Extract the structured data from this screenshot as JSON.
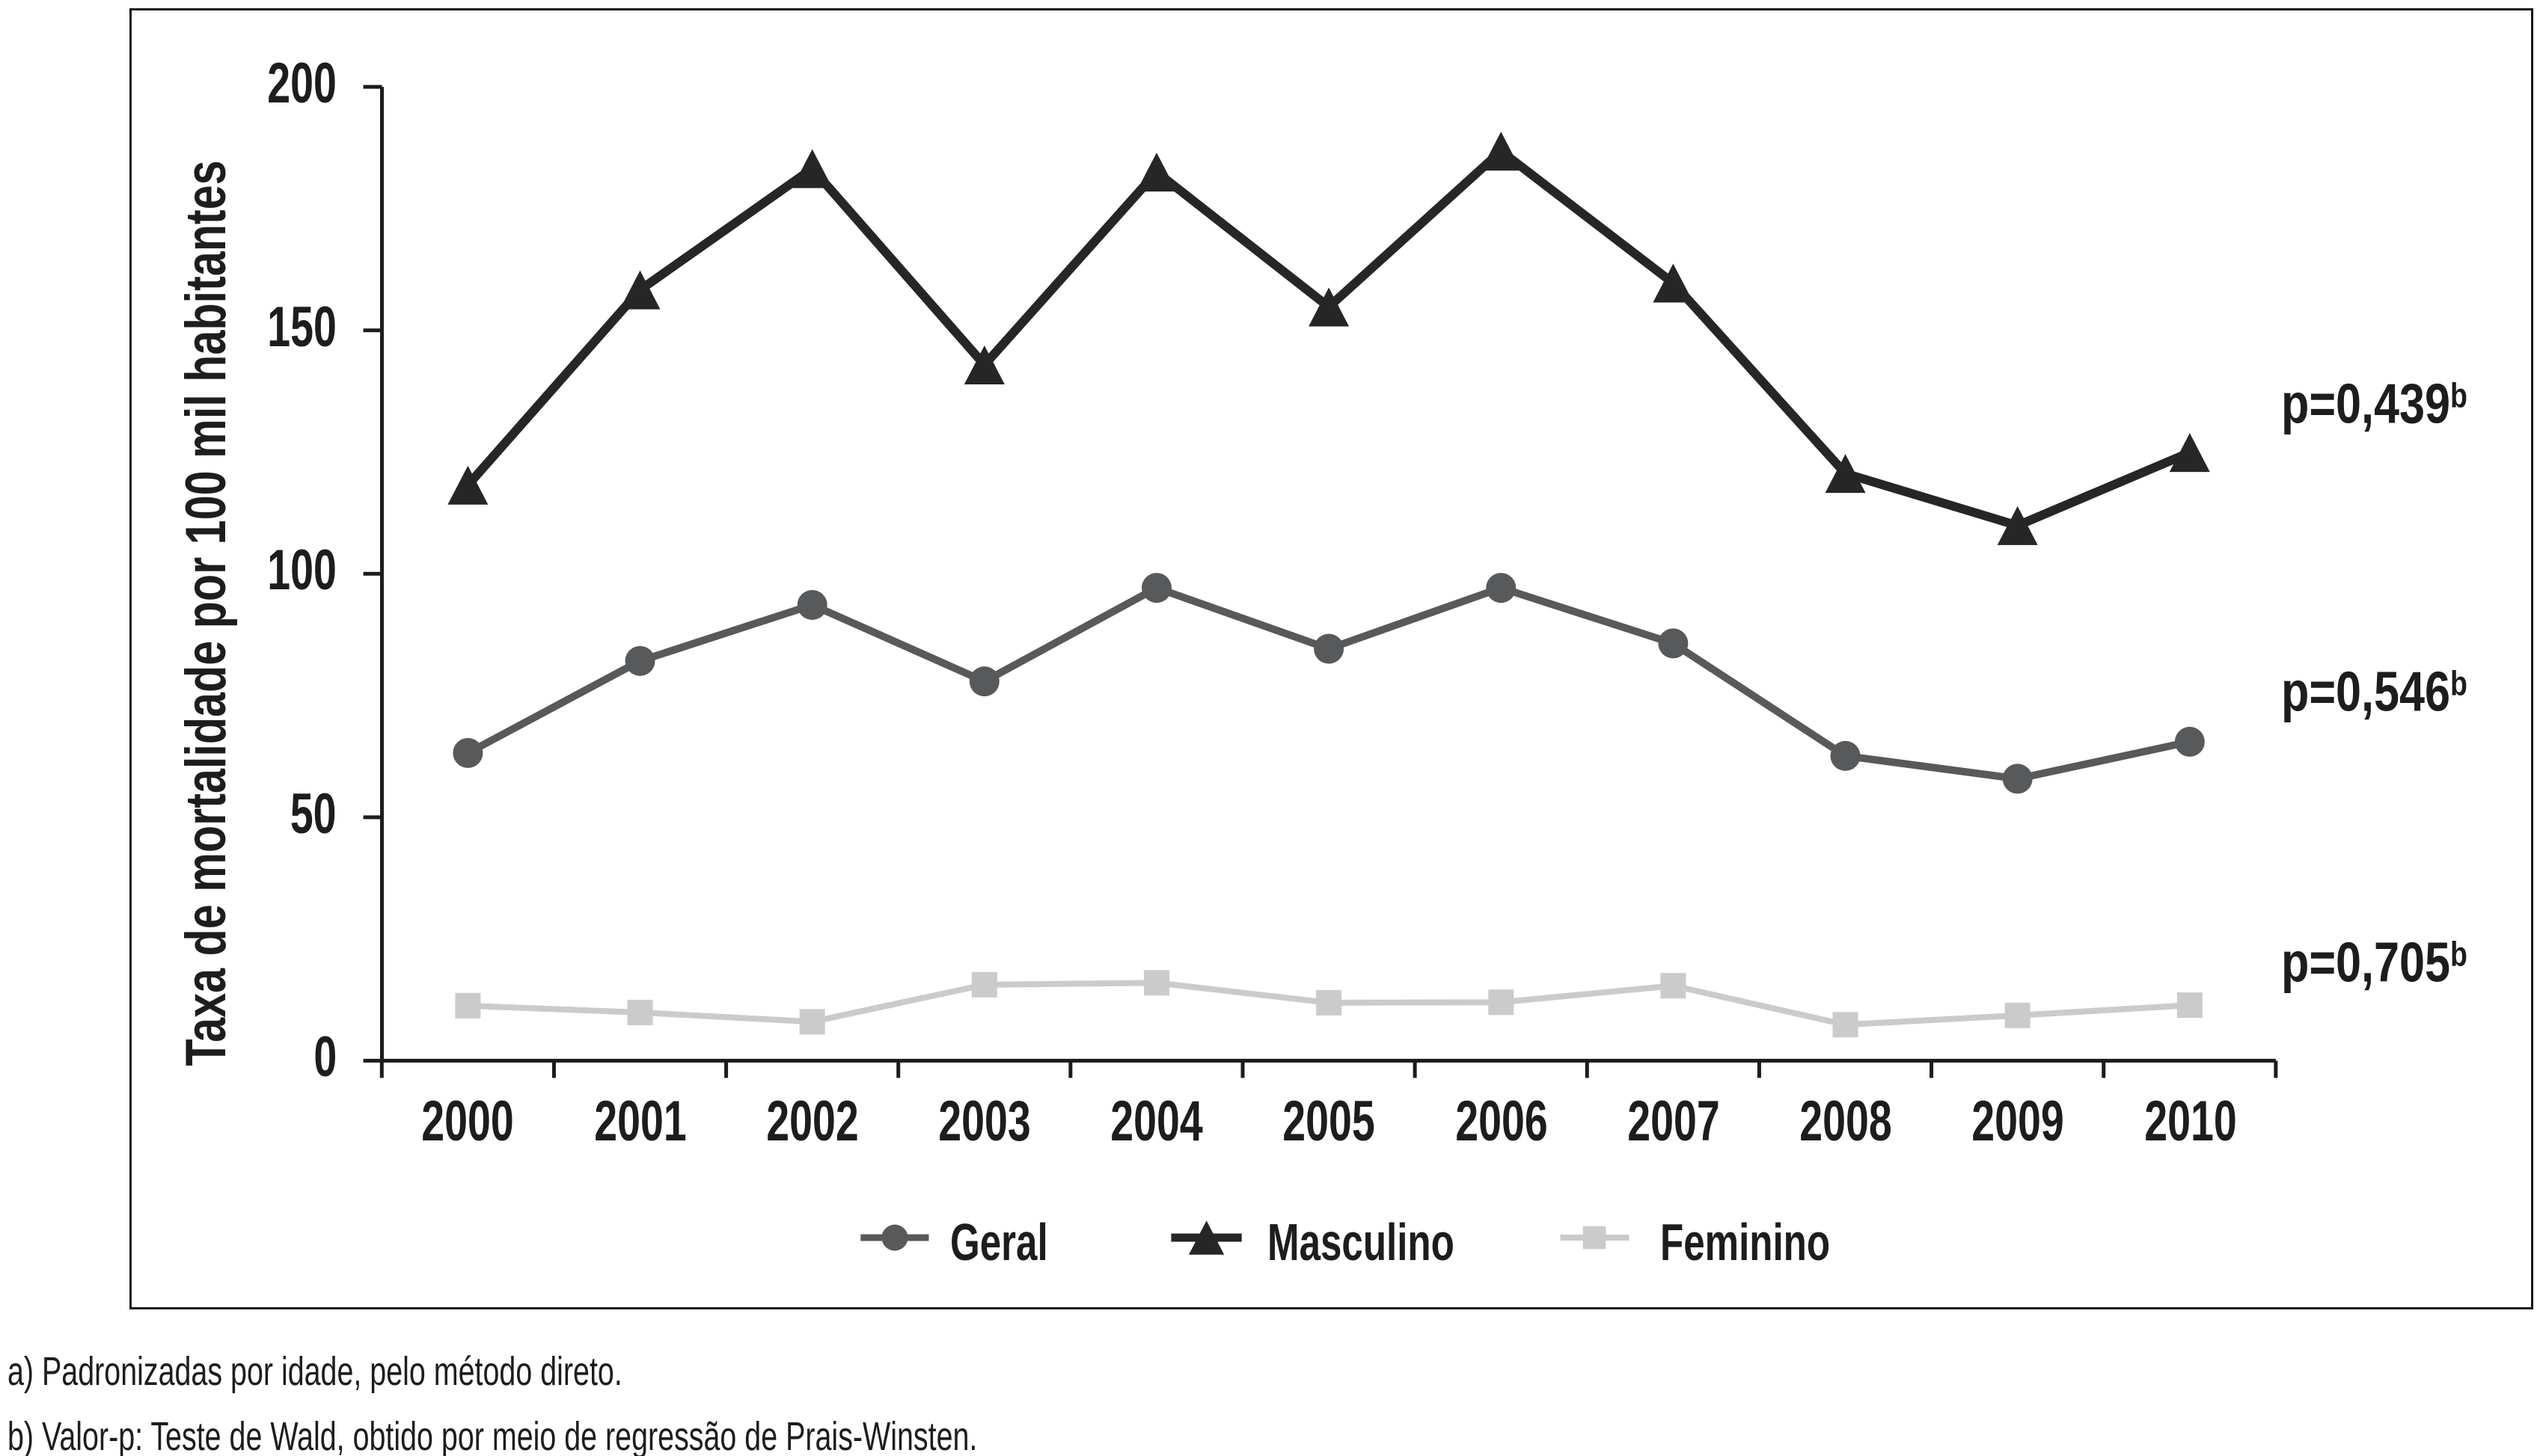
{
  "chart_data": {
    "type": "line",
    "categories": [
      "2000",
      "2001",
      "2002",
      "2003",
      "2004",
      "2005",
      "2006",
      "2007",
      "2008",
      "2009",
      "2010"
    ],
    "series": [
      {
        "name": "Geral",
        "marker": "circle",
        "color": "#58595b",
        "line_width": 10,
        "values": [
          63.2,
          82.1,
          93.6,
          77.9,
          97.1,
          84.6,
          97.1,
          85.7,
          62.6,
          57.9,
          65.5
        ],
        "p_value_label": "p=0,546",
        "p_value_sup": "b"
      },
      {
        "name": "Masculino",
        "marker": "triangle",
        "color": "#262626",
        "line_width": 12,
        "values": [
          118.2,
          158.3,
          183.2,
          142.9,
          182.5,
          154.8,
          186.8,
          159.7,
          120.6,
          109.9,
          124.9
        ],
        "p_value_label": "p=0,439",
        "p_value_sup": "b"
      },
      {
        "name": "Feminino",
        "marker": "square",
        "color": "#cbcbcb",
        "line_width": 8,
        "values": [
          11.3,
          9.9,
          8.0,
          15.6,
          16.0,
          11.9,
          12.0,
          15.4,
          7.4,
          9.3,
          11.4
        ],
        "p_value_label": "p=0,705",
        "p_value_sup": "b"
      }
    ],
    "title": "",
    "xlabel": "",
    "ylabel": "Taxa de mortalidade por 100 mil habitantes",
    "ytick_labels": [
      "0",
      "50",
      "100",
      "150",
      "200"
    ],
    "yticks": [
      0,
      50,
      100,
      150,
      200
    ],
    "ylim": [
      0,
      200
    ],
    "grid": false,
    "legend_position": "bottom-center"
  },
  "footnotes": {
    "a": "a) Padronizadas por idade, pelo método direto.",
    "b": "b) Valor-p: Teste de Wald, obtido por meio de regressão de Prais-Winsten."
  },
  "colors": {
    "axis": "#1c1c1c",
    "frame": "#161616",
    "text": "#1d1d1b",
    "background": "#ffffff"
  }
}
